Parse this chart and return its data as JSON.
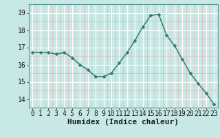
{
  "x": [
    0,
    1,
    2,
    3,
    4,
    5,
    6,
    7,
    8,
    9,
    10,
    11,
    12,
    13,
    14,
    15,
    16,
    17,
    18,
    19,
    20,
    21,
    22,
    23
  ],
  "y": [
    16.7,
    16.7,
    16.7,
    16.6,
    16.7,
    16.4,
    16.0,
    15.7,
    15.3,
    15.3,
    15.5,
    16.1,
    16.7,
    17.4,
    18.2,
    18.85,
    18.9,
    17.7,
    17.1,
    16.3,
    15.5,
    14.9,
    14.35,
    13.7
  ],
  "line_color": "#2e7d72",
  "marker": "D",
  "marker_size": 2.5,
  "bg_color": "#c8e8e5",
  "grid_color_major": "#ffffff",
  "grid_color_minor": "#ddb8b8",
  "xlabel": "Humidex (Indice chaleur)",
  "xlabel_fontsize": 8,
  "ylim": [
    13.5,
    19.5
  ],
  "xlim": [
    -0.5,
    23.5
  ],
  "yticks": [
    14,
    15,
    16,
    17,
    18,
    19
  ],
  "xticks": [
    0,
    1,
    2,
    3,
    4,
    5,
    6,
    7,
    8,
    9,
    10,
    11,
    12,
    13,
    14,
    15,
    16,
    17,
    18,
    19,
    20,
    21,
    22,
    23
  ],
  "tick_fontsize": 7,
  "line_width": 1.1,
  "spine_color": "#5a9a95"
}
